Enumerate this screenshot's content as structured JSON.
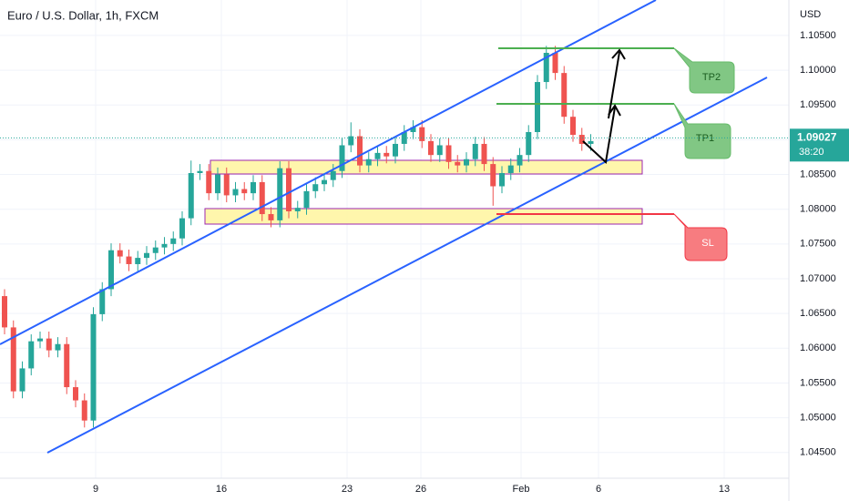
{
  "chart_data": {
    "type": "candlestick",
    "title": "Euro / U.S. Dollar, 1h, FXCM",
    "currency": "USD",
    "open": [
      1.0675,
      1.063,
      1.0538,
      1.0571,
      1.061,
      1.0614,
      1.0597,
      1.0606,
      1.0544,
      1.0525,
      1.0496,
      1.0649,
      1.0685,
      1.0741,
      1.0732,
      1.0721,
      1.073,
      1.0737,
      1.0745,
      1.075,
      1.0758,
      1.0787,
      1.0852,
      1.0855,
      1.0823,
      1.085,
      1.082,
      1.0829,
      1.0823,
      1.0839,
      1.0793,
      1.0784,
      1.0859,
      1.0797,
      1.0802,
      1.0826,
      1.0836,
      1.0842,
      1.0855,
      1.0892,
      1.0905,
      1.0863,
      1.0872,
      1.0881,
      1.0876,
      1.0894,
      1.0911,
      1.0918,
      1.0898,
      1.0878,
      1.0892,
      1.0868,
      1.0863,
      1.0872,
      1.0894,
      1.0865,
      1.0833,
      1.0852,
      1.0863,
      1.0878,
      1.0911,
      1.0983,
      1.1025,
      1.0996,
      1.0933,
      1.0907,
      1.0894
    ],
    "high": [
      1.0685,
      1.064,
      1.0581,
      1.062,
      1.0624,
      1.0624,
      1.0616,
      1.0616,
      1.0554,
      1.0535,
      1.0659,
      1.0695,
      1.0751,
      1.0751,
      1.0742,
      1.074,
      1.0747,
      1.0755,
      1.076,
      1.0768,
      1.0797,
      1.087,
      1.0865,
      1.0865,
      1.086,
      1.086,
      1.0839,
      1.0839,
      1.0849,
      1.0849,
      1.0803,
      1.0869,
      1.0869,
      1.0812,
      1.0836,
      1.0846,
      1.0852,
      1.0865,
      1.0902,
      1.0925,
      1.0915,
      1.0882,
      1.0891,
      1.0891,
      1.0904,
      1.0921,
      1.0928,
      1.0928,
      1.0908,
      1.0902,
      1.0902,
      1.0878,
      1.0882,
      1.0904,
      1.0904,
      1.0875,
      1.0862,
      1.0873,
      1.0888,
      1.0921,
      1.0993,
      1.1035,
      1.1035,
      1.1006,
      1.0943,
      1.0917,
      1.0908
    ],
    "low": [
      1.062,
      1.0528,
      1.0528,
      1.0561,
      1.06,
      1.0587,
      1.0587,
      1.0534,
      1.0515,
      1.0486,
      1.0486,
      1.0639,
      1.0675,
      1.0722,
      1.0711,
      1.0711,
      1.072,
      1.0727,
      1.0735,
      1.074,
      1.0748,
      1.0777,
      1.0842,
      1.0813,
      1.0813,
      1.081,
      1.081,
      1.0813,
      1.0813,
      1.0783,
      1.0774,
      1.0774,
      1.0787,
      1.0787,
      1.0792,
      1.0816,
      1.0826,
      1.0832,
      1.0845,
      1.0882,
      1.0853,
      1.0853,
      1.0862,
      1.0866,
      1.0866,
      1.0884,
      1.0901,
      1.0888,
      1.0868,
      1.0868,
      1.0858,
      1.0853,
      1.0853,
      1.0862,
      1.0855,
      1.0805,
      1.0823,
      1.0842,
      1.0853,
      1.0868,
      1.0901,
      1.0973,
      1.0986,
      1.0923,
      1.0897,
      1.0884,
      1.0884
    ],
    "close": [
      1.063,
      1.0538,
      1.0571,
      1.061,
      1.0614,
      1.0597,
      1.0606,
      1.0544,
      1.0525,
      1.0496,
      1.0649,
      1.0685,
      1.0741,
      1.0732,
      1.0721,
      1.073,
      1.0737,
      1.0745,
      1.075,
      1.0758,
      1.0787,
      1.0852,
      1.0855,
      1.0823,
      1.085,
      1.082,
      1.0829,
      1.0823,
      1.0839,
      1.0793,
      1.0784,
      1.0859,
      1.0797,
      1.0802,
      1.0826,
      1.0836,
      1.0842,
      1.0855,
      1.0892,
      1.0905,
      1.0863,
      1.0872,
      1.0881,
      1.0876,
      1.0894,
      1.0911,
      1.0918,
      1.0898,
      1.0878,
      1.0892,
      1.0868,
      1.0863,
      1.0872,
      1.0894,
      1.0865,
      1.0833,
      1.0852,
      1.0863,
      1.0878,
      1.0911,
      1.0983,
      1.1025,
      1.0996,
      1.0933,
      1.0907,
      1.0894,
      1.0898
    ],
    "up_color": "#26a69a",
    "down_color": "#ef5350",
    "x_labels": [
      "9",
      "16",
      "23",
      "26",
      "Feb",
      "6",
      "13"
    ],
    "ylim": [
      1.0413,
      1.1101
    ],
    "yticks": [
      {
        "value": 1.045,
        "label": "1.04500"
      },
      {
        "value": 1.05,
        "label": "1.05000"
      },
      {
        "value": 1.055,
        "label": "1.05500"
      },
      {
        "value": 1.06,
        "label": "1.06000"
      },
      {
        "value": 1.065,
        "label": "1.06500"
      },
      {
        "value": 1.07,
        "label": "1.07000"
      },
      {
        "value": 1.075,
        "label": "1.07500"
      },
      {
        "value": 1.08,
        "label": "1.08000"
      },
      {
        "value": 1.085,
        "label": "1.08500"
      },
      {
        "value": 1.09,
        "label": "1.09000"
      },
      {
        "value": 1.095,
        "label": "1.09500"
      },
      {
        "value": 1.1,
        "label": "1.10000"
      },
      {
        "value": 1.105,
        "label": "1.10500"
      }
    ],
    "grid": true,
    "last_price": 1.09027,
    "countdown": "38:20",
    "annotations": [
      "TP2",
      "TP1",
      "SL"
    ]
  }
}
